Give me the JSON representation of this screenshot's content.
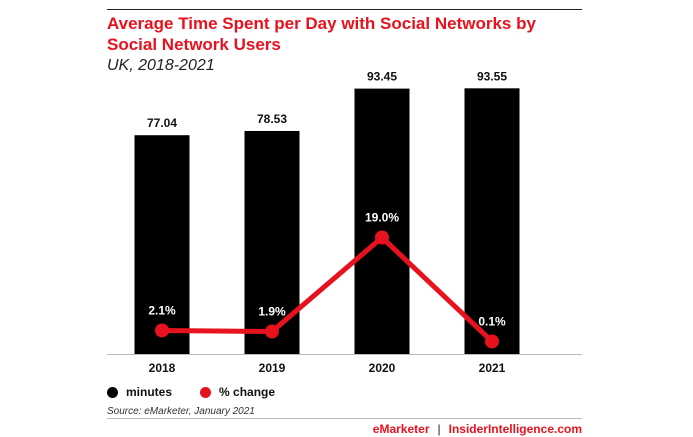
{
  "chart_data": {
    "type": "bar",
    "title": "Average Time Spent per Day with Social Networks by Social Network Users",
    "subtitle": "UK, 2018-2021",
    "categories": [
      "2018",
      "2019",
      "2020",
      "2021"
    ],
    "series": [
      {
        "name": "minutes",
        "type": "bar",
        "values": [
          77.04,
          78.53,
          93.45,
          93.55
        ],
        "labels": [
          "77.04",
          "78.53",
          "93.45",
          "93.55"
        ],
        "color": "#000000"
      },
      {
        "name": "% change",
        "type": "line",
        "values": [
          2.1,
          1.9,
          19.0,
          0.1
        ],
        "labels": [
          "2.1%",
          "1.9%",
          "19.0%",
          "0.1%"
        ],
        "color": "#e8121e"
      }
    ],
    "ylim_bars": [
      0,
      100
    ],
    "ylim_line": [
      0,
      25
    ],
    "grid": false,
    "legend_position": "bottom-left"
  },
  "source": "Source: eMarketer, January 2021",
  "footer": {
    "brand1": "eMarketer",
    "separator": "|",
    "brand2": "InsiderIntelligence.com"
  },
  "colors": {
    "accent": "#e8121e",
    "bar": "#000000"
  }
}
